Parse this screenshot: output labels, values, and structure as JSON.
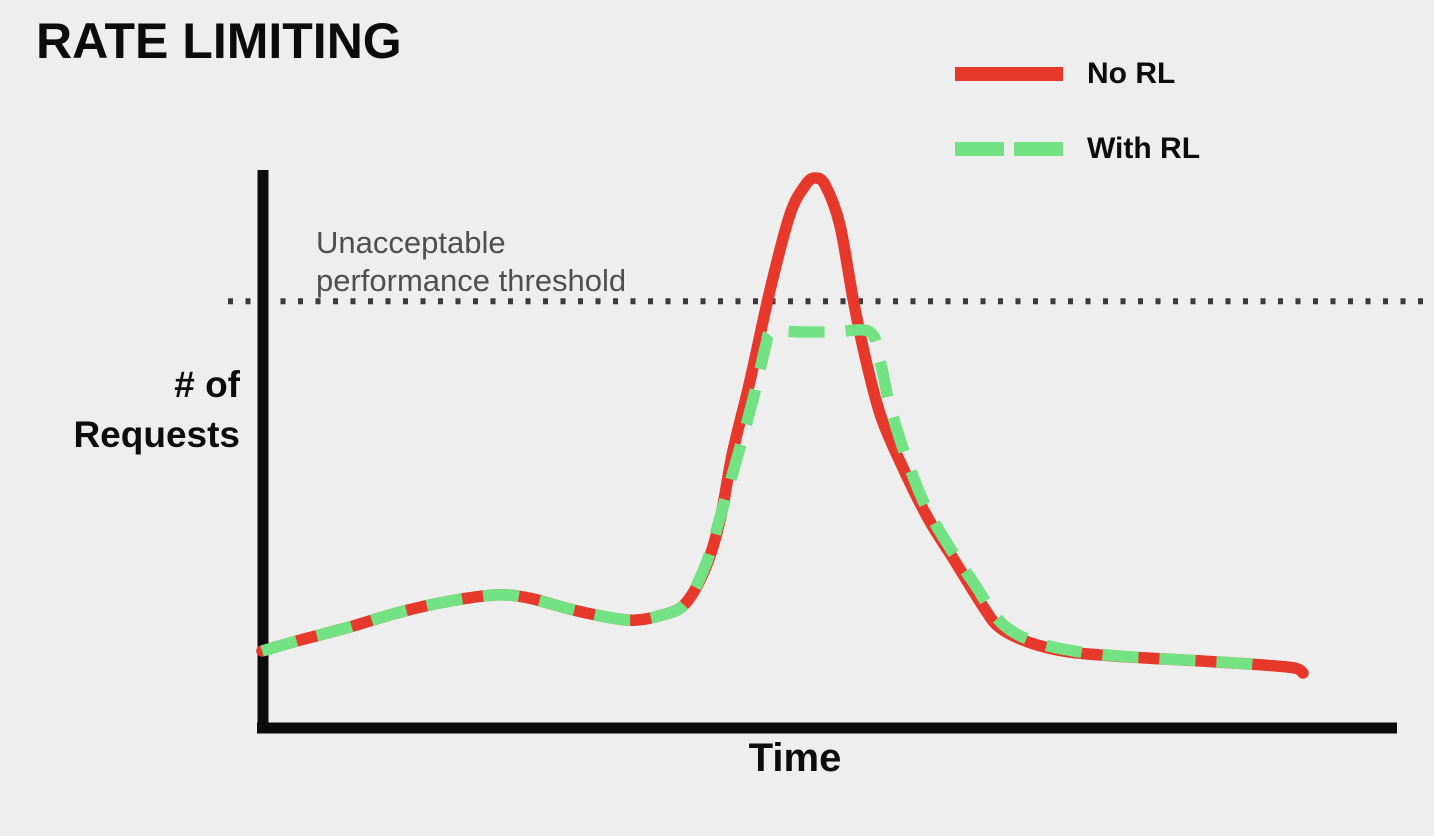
{
  "title": "RATE LIMITING",
  "legend": {
    "items": [
      {
        "label": "No RL",
        "color": "#e7382c",
        "style": "solid"
      },
      {
        "label": "With RL",
        "color": "#73e282",
        "style": "dashed"
      }
    ]
  },
  "threshold": {
    "label_line1": "Unacceptable",
    "label_line2": "performance threshold",
    "line_color": "#3b3b3b",
    "text_color": "#4f4f4f",
    "value": 77.6
  },
  "axes": {
    "y_label_line1": "# of",
    "y_label_line2": "Requests",
    "x_label": "Time",
    "axis_color": "#0b0b0b"
  },
  "colors": {
    "background": "#eeeeee",
    "no_rl": "#e7382c",
    "with_rl": "#73e282",
    "threshold_dots": "#3b3b3b",
    "text": "#0c0c0c"
  },
  "chart_data": {
    "type": "line",
    "title": "RATE LIMITING",
    "xlabel": "Time",
    "ylabel": "# of Requests",
    "x_range": [
      0,
      100
    ],
    "y_range": [
      0,
      110
    ],
    "grid": false,
    "legend_position": "top-right",
    "axis_ticks": "none",
    "annotations": [
      {
        "text": "Unacceptable performance threshold",
        "y": 77.6,
        "style": "dotted-horizontal-line"
      }
    ],
    "series": [
      {
        "name": "No RL",
        "color": "#e7382c",
        "style": "solid",
        "points": [
          [
            0,
            14.0
          ],
          [
            3.7,
            16.0
          ],
          [
            8.5,
            18.4
          ],
          [
            13.3,
            21.1
          ],
          [
            18.1,
            23.1
          ],
          [
            22.6,
            24.2
          ],
          [
            25.7,
            23.6
          ],
          [
            29.6,
            21.6
          ],
          [
            32.5,
            20.4
          ],
          [
            35.5,
            19.6
          ],
          [
            38.2,
            20.4
          ],
          [
            40.6,
            22.5
          ],
          [
            42.6,
            29.1
          ],
          [
            44.0,
            37.8
          ],
          [
            45.2,
            50.0
          ],
          [
            46.9,
            63.3
          ],
          [
            48.8,
            79.6
          ],
          [
            50.7,
            93.3
          ],
          [
            52.2,
            98.7
          ],
          [
            53.1,
            100.0
          ],
          [
            54.1,
            98.7
          ],
          [
            55.5,
            91.5
          ],
          [
            56.8,
            77.8
          ],
          [
            57.9,
            67.8
          ],
          [
            59.4,
            56.9
          ],
          [
            61.3,
            48.4
          ],
          [
            63.9,
            38.4
          ],
          [
            66.6,
            30.2
          ],
          [
            69.3,
            22.0
          ],
          [
            70.9,
            18.2
          ],
          [
            73.8,
            15.5
          ],
          [
            77.6,
            13.8
          ],
          [
            83.4,
            12.9
          ],
          [
            90.1,
            12.2
          ],
          [
            95.9,
            11.5
          ],
          [
            99.2,
            10.9
          ],
          [
            100,
            10.0
          ]
        ]
      },
      {
        "name": "With RL",
        "color": "#73e282",
        "style": "dashed",
        "cap_value": 72.0,
        "points": [
          [
            0,
            14.0
          ],
          [
            3.7,
            16.0
          ],
          [
            8.5,
            18.4
          ],
          [
            13.3,
            21.1
          ],
          [
            18.1,
            23.1
          ],
          [
            22.6,
            24.2
          ],
          [
            25.7,
            23.6
          ],
          [
            29.6,
            21.6
          ],
          [
            32.5,
            20.4
          ],
          [
            35.5,
            19.6
          ],
          [
            38.2,
            20.4
          ],
          [
            40.6,
            22.5
          ],
          [
            42.6,
            29.6
          ],
          [
            44.2,
            39.6
          ],
          [
            45.9,
            50.9
          ],
          [
            47.4,
            61.5
          ],
          [
            48.4,
            69.6
          ],
          [
            49.0,
            72.0
          ],
          [
            52.0,
            72.0
          ],
          [
            55.0,
            72.0
          ],
          [
            58.4,
            72.0
          ],
          [
            59.4,
            66.5
          ],
          [
            60.3,
            58.7
          ],
          [
            61.8,
            49.6
          ],
          [
            63.7,
            40.5
          ],
          [
            66.1,
            32.7
          ],
          [
            68.5,
            26.0
          ],
          [
            70.4,
            20.4
          ],
          [
            72.3,
            17.3
          ],
          [
            75.2,
            15.1
          ],
          [
            79.5,
            13.6
          ],
          [
            85.3,
            12.7
          ],
          [
            92.0,
            12.0
          ],
          [
            97.0,
            11.3
          ]
        ]
      }
    ]
  }
}
